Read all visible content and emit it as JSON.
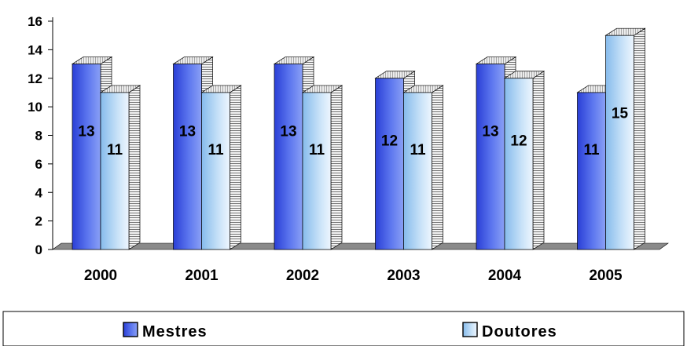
{
  "chart_data": {
    "type": "bar",
    "categories": [
      "2000",
      "2001",
      "2002",
      "2003",
      "2004",
      "2005"
    ],
    "series": [
      {
        "name": "Mestres",
        "values": [
          13,
          13,
          13,
          12,
          13,
          11
        ]
      },
      {
        "name": "Doutores",
        "values": [
          11,
          11,
          11,
          11,
          12,
          15
        ]
      }
    ],
    "y_ticks": [
      "0",
      "2",
      "4",
      "6",
      "8",
      "10",
      "12",
      "14",
      "16"
    ],
    "ylim": [
      0,
      16
    ],
    "grid": false,
    "legend_position": "bottom",
    "three_d": true,
    "colors": {
      "mestres_front_dark": "#2a3fd6",
      "mestres_front_light": "#7d96f4",
      "doutores_front_dark": "#7fb4ea",
      "doutores_front_light": "#e6f2fd",
      "floor": "#8a8a8a"
    }
  }
}
